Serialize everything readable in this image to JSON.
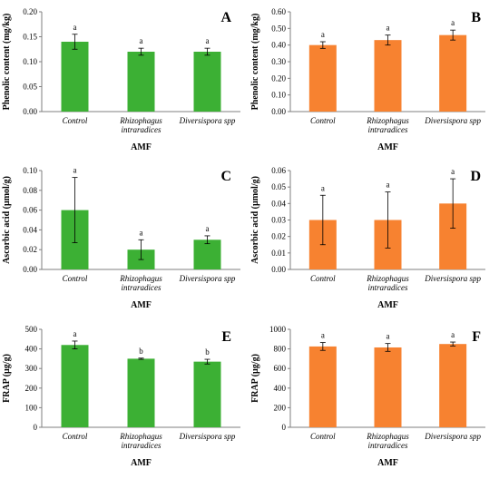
{
  "chart_data": [
    {
      "type": "bar",
      "panel_letter": "A",
      "color": "#3cb034",
      "ylabel": "Phenolic content (mg/kg)",
      "xlabel": "AMF",
      "categories": [
        [
          "Control"
        ],
        [
          "Rhizophagus",
          "intraradices"
        ],
        [
          "Diversispora spp"
        ]
      ],
      "values": [
        0.14,
        0.12,
        0.12
      ],
      "errors": [
        0.015,
        0.007,
        0.007
      ],
      "letters": [
        "a",
        "a",
        "a"
      ],
      "ylim": [
        0,
        0.2
      ],
      "yticks": [
        "0.00",
        "0.05",
        "0.10",
        "0.15",
        "0.20"
      ]
    },
    {
      "type": "bar",
      "panel_letter": "B",
      "color": "#f78230",
      "ylabel": "Phenolic content (mg/kg)",
      "xlabel": "AMF",
      "categories": [
        [
          "Control"
        ],
        [
          "Rhizophagus",
          "intraradices"
        ],
        [
          "Diversispora spp"
        ]
      ],
      "values": [
        0.4,
        0.43,
        0.46
      ],
      "errors": [
        0.02,
        0.03,
        0.03
      ],
      "letters": [
        "a",
        "a",
        "a"
      ],
      "ylim": [
        0,
        0.6
      ],
      "yticks": [
        "0.00",
        "0.10",
        "0.20",
        "0.30",
        "0.40",
        "0.50",
        "0.60"
      ]
    },
    {
      "type": "bar",
      "panel_letter": "C",
      "color": "#3cb034",
      "ylabel": "Ascorbic acid (µmol/g)",
      "xlabel": "AMF",
      "categories": [
        [
          "Control"
        ],
        [
          "Rhizophagus",
          "intraradices"
        ],
        [
          "Diversispora spp"
        ]
      ],
      "values": [
        0.06,
        0.02,
        0.03
      ],
      "errors": [
        0.033,
        0.01,
        0.004
      ],
      "letters": [
        "a",
        "a",
        "a"
      ],
      "ylim": [
        0,
        0.1
      ],
      "yticks": [
        "0.00",
        "0.02",
        "0.04",
        "0.06",
        "0.08",
        "0.10"
      ]
    },
    {
      "type": "bar",
      "panel_letter": "D",
      "color": "#f78230",
      "ylabel": "Ascorbic acid (µmol/g)",
      "xlabel": "AMF",
      "categories": [
        [
          "Control"
        ],
        [
          "Rhizophagus",
          "intraradices"
        ],
        [
          "Diversispora spp"
        ]
      ],
      "values": [
        0.03,
        0.03,
        0.04
      ],
      "errors": [
        0.015,
        0.017,
        0.015
      ],
      "letters": [
        "a",
        "a",
        "a"
      ],
      "ylim": [
        0,
        0.06
      ],
      "yticks": [
        "0.00",
        "0.01",
        "0.02",
        "0.03",
        "0.04",
        "0.05",
        "0.06"
      ]
    },
    {
      "type": "bar",
      "panel_letter": "E",
      "color": "#3cb034",
      "ylabel": "FRAP (µg/g)",
      "xlabel": "AMF",
      "categories": [
        [
          "Control"
        ],
        [
          "Rhizophagus",
          "intraradices"
        ],
        [
          "Diversispora spp"
        ]
      ],
      "values": [
        420,
        350,
        335
      ],
      "errors": [
        20,
        3,
        12
      ],
      "letters": [
        "a",
        "b",
        "b"
      ],
      "ylim": [
        0,
        500
      ],
      "yticks": [
        "0",
        "100",
        "200",
        "300",
        "400",
        "500"
      ]
    },
    {
      "type": "bar",
      "panel_letter": "F",
      "color": "#f78230",
      "ylabel": "FRAP (µg/g)",
      "xlabel": "AMF",
      "categories": [
        [
          "Control"
        ],
        [
          "Rhizophagus",
          "intraradices"
        ],
        [
          "Diversispora spp"
        ]
      ],
      "values": [
        825,
        815,
        850
      ],
      "errors": [
        40,
        40,
        20
      ],
      "letters": [
        "a",
        "a",
        "a"
      ],
      "ylim": [
        0,
        1000
      ],
      "yticks": [
        "0",
        "200",
        "400",
        "600",
        "800",
        "1000"
      ]
    }
  ]
}
